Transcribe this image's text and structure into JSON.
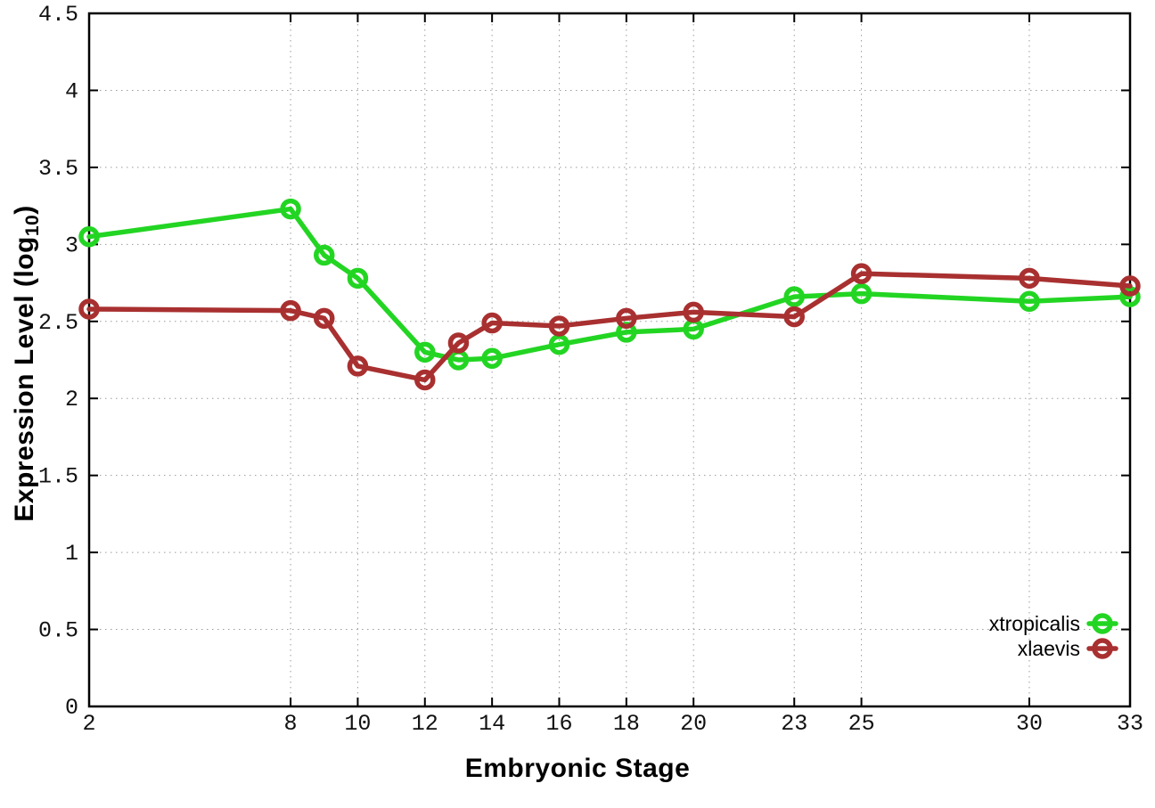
{
  "chart_data": {
    "type": "line",
    "title": "",
    "xlabel": "Embryonic Stage",
    "ylabel": "Expression Level (log10)",
    "ylabel_parts": {
      "main": "Expression Level (log",
      "sub": "10",
      "close": ")"
    },
    "x": [
      2,
      8,
      9,
      10,
      12,
      13,
      14,
      16,
      18,
      20,
      23,
      25,
      30,
      33
    ],
    "series": [
      {
        "name": "xtropicalis",
        "color": "#23d523",
        "values": [
          3.05,
          3.23,
          2.93,
          2.78,
          2.3,
          2.25,
          2.26,
          2.35,
          2.43,
          2.45,
          2.66,
          2.68,
          2.63,
          2.66
        ]
      },
      {
        "name": "xlaevis",
        "color": "#a93030",
        "values": [
          2.58,
          2.57,
          2.52,
          2.21,
          2.12,
          2.36,
          2.49,
          2.47,
          2.52,
          2.56,
          2.53,
          2.81,
          2.78,
          2.73
        ]
      }
    ],
    "xlim": [
      2,
      33
    ],
    "ylim": [
      0,
      4.5
    ],
    "x_ticks": [
      2,
      8,
      10,
      12,
      14,
      16,
      18,
      20,
      23,
      25,
      30,
      33
    ],
    "y_ticks": [
      0,
      0.5,
      1,
      1.5,
      2,
      2.5,
      3,
      3.5,
      4,
      4.5
    ],
    "grid": true,
    "legend_position": "bottom-right",
    "marker": "open-circle",
    "colors": {
      "border": "#000000",
      "grid": "#9b9b9b",
      "tick_label": "#111111",
      "legend_text": "#000000",
      "background": "#ffffff"
    }
  }
}
